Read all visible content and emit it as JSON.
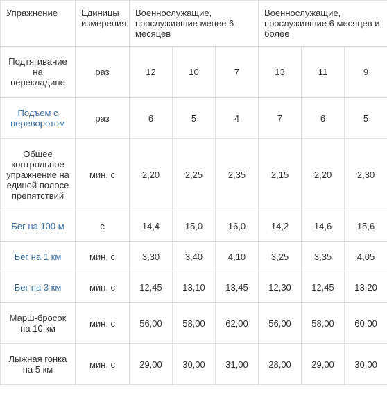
{
  "headers": {
    "exercise": "Упражнение",
    "unit": "Единицы измерения",
    "group1": "Военнослужащие, прослужившие менее 6 месяцев",
    "group2": "Военнослужащие, прослужившие\n6 месяцев и более"
  },
  "rows": [
    {
      "name": "Подтягивание на перекладине",
      "link": false,
      "unit": "раз",
      "g1": [
        "12",
        "10",
        "7"
      ],
      "g2": [
        "13",
        "11",
        "9"
      ]
    },
    {
      "name": "Подъем с переворотом",
      "link": true,
      "unit": "раз",
      "g1": [
        "6",
        "5",
        "4"
      ],
      "g2": [
        "7",
        "6",
        "5"
      ]
    },
    {
      "name": "Общее контрольное упражнение на единой полосе препятствий",
      "link": false,
      "unit": "мин, с",
      "g1": [
        "2,20",
        "2,25",
        "2,35"
      ],
      "g2": [
        "2,15",
        "2,20",
        "2,30"
      ]
    },
    {
      "name": "Бег на 100 м",
      "link": true,
      "unit": "с",
      "g1": [
        "14,4",
        "15,0",
        "16,0"
      ],
      "g2": [
        "14,2",
        "14,6",
        "15,6"
      ]
    },
    {
      "name": "Бег на 1 км",
      "link": true,
      "unit": "мин, с",
      "g1": [
        "3,30",
        "3,40",
        "4,10"
      ],
      "g2": [
        "3,25",
        "3,35",
        "4,05"
      ]
    },
    {
      "name": "Бег на 3 км",
      "link": true,
      "unit": "мин, с",
      "g1": [
        "12,45",
        "13,10",
        "13,45"
      ],
      "g2": [
        "12,30",
        "12,45",
        "13,20"
      ]
    },
    {
      "name": "Марш-бросок на 10 км",
      "link": false,
      "unit": "мин, с",
      "g1": [
        "56,00",
        "58,00",
        "62,00"
      ],
      "g2": [
        "56,00",
        "58,00",
        "60,00"
      ]
    },
    {
      "name": "Лыжная гонка на 5 км",
      "link": false,
      "unit": "мин, с",
      "g1": [
        "29,00",
        "30,00",
        "31,00"
      ],
      "g2": [
        "28,00",
        "29,00",
        "30,00"
      ]
    }
  ]
}
